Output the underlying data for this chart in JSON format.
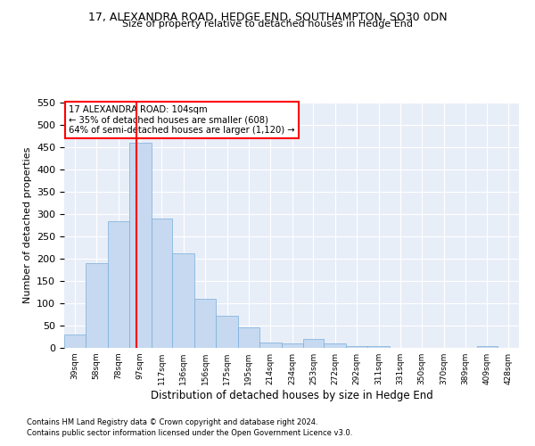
{
  "title_line1": "17, ALEXANDRA ROAD, HEDGE END, SOUTHAMPTON, SO30 0DN",
  "title_line2": "Size of property relative to detached houses in Hedge End",
  "xlabel": "Distribution of detached houses by size in Hedge End",
  "ylabel": "Number of detached properties",
  "footnote1": "Contains HM Land Registry data © Crown copyright and database right 2024.",
  "footnote2": "Contains public sector information licensed under the Open Government Licence v3.0.",
  "annotation_line1": "17 ALEXANDRA ROAD: 104sqm",
  "annotation_line2": "← 35% of detached houses are smaller (608)",
  "annotation_line3": "64% of semi-detached houses are larger (1,120) →",
  "subject_size": 104,
  "bar_color": "#c6d9f0",
  "bar_edge_color": "#7aadda",
  "vline_color": "red",
  "background_color": "#e8eef8",
  "grid_color": "white",
  "categories": [
    "39sqm",
    "58sqm",
    "78sqm",
    "97sqm",
    "117sqm",
    "136sqm",
    "156sqm",
    "175sqm",
    "195sqm",
    "214sqm",
    "234sqm",
    "253sqm",
    "272sqm",
    "292sqm",
    "311sqm",
    "331sqm",
    "350sqm",
    "370sqm",
    "389sqm",
    "409sqm",
    "428sqm"
  ],
  "values": [
    30,
    190,
    285,
    460,
    290,
    213,
    110,
    73,
    46,
    13,
    11,
    21,
    10,
    5,
    5,
    0,
    0,
    0,
    0,
    5,
    0
  ],
  "bin_edges": [
    39,
    58,
    78,
    97,
    117,
    136,
    156,
    175,
    195,
    214,
    234,
    253,
    272,
    292,
    311,
    331,
    350,
    370,
    389,
    409,
    428,
    447
  ],
  "ylim": [
    0,
    550
  ],
  "yticks": [
    0,
    50,
    100,
    150,
    200,
    250,
    300,
    350,
    400,
    450,
    500,
    550
  ]
}
